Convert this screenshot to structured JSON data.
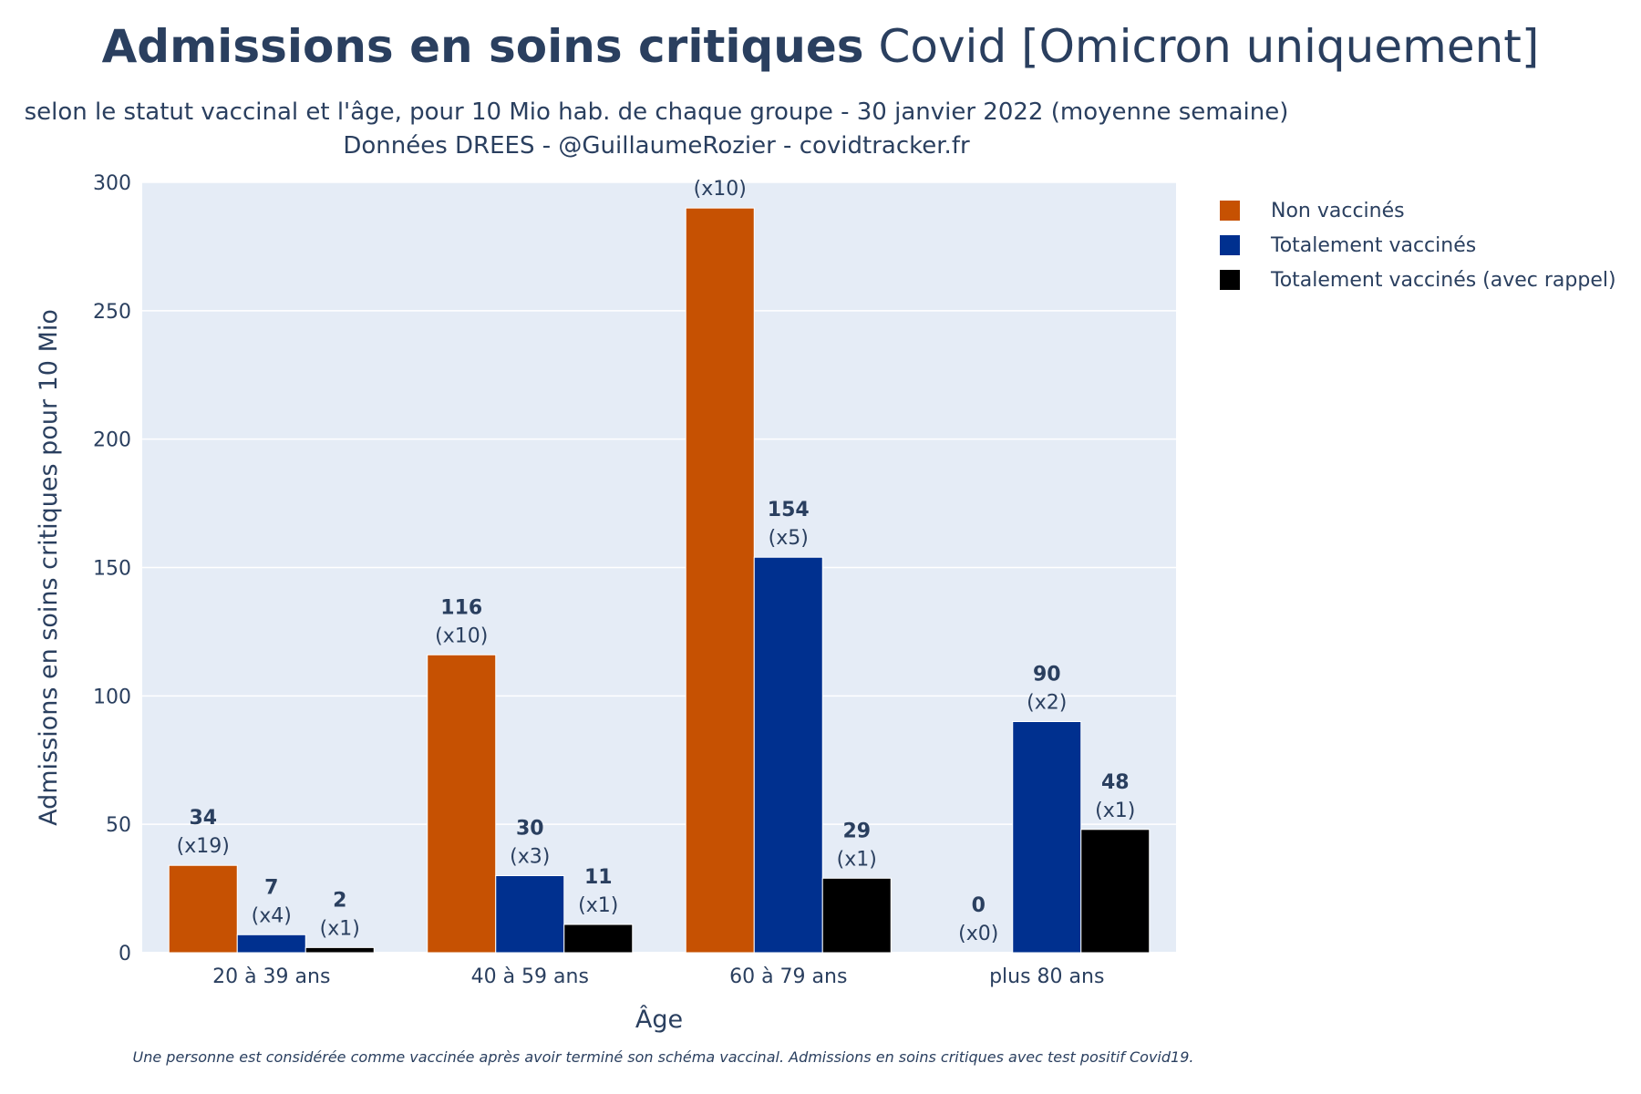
{
  "title_bold": "Admissions en soins critiques",
  "title_rest": " Covid [Omicron uniquement]",
  "subtitle_line1": "selon le statut vaccinal et l'âge, pour 10 Mio hab. de chaque groupe - 30 janvier 2022 (moyenne semaine)",
  "subtitle_line2": "Données DREES - @GuillaumeRozier - covidtracker.fr",
  "footnote": "Une personne est considérée comme vaccinée après avoir terminé son schéma vaccinal. Admissions en soins critiques avec test positif Covid19.",
  "chart_data": {
    "type": "bar",
    "xlabel": "Âge",
    "ylabel": "Admissions en soins critiques pour 10 Mio",
    "ylim": [
      0,
      300
    ],
    "yticks": [
      0,
      50,
      100,
      150,
      200,
      250,
      300
    ],
    "categories": [
      "20 à 39 ans",
      "40 à 59 ans",
      "60 à 79 ans",
      "plus 80 ans"
    ],
    "grid": true,
    "legend_position": "right",
    "series": [
      {
        "name": "Non vaccinés",
        "color": "#c65102",
        "values": [
          34,
          116,
          290,
          0
        ],
        "value_labels": [
          "34",
          "116",
          "",
          "0"
        ],
        "ratio_labels": [
          "(x19)",
          "(x10)",
          "(x10)",
          "(x0)"
        ]
      },
      {
        "name": "Totalement vaccinés",
        "color": "#00308f",
        "values": [
          7,
          30,
          154,
          90
        ],
        "value_labels": [
          "7",
          "30",
          "154",
          "90"
        ],
        "ratio_labels": [
          "(x4)",
          "(x3)",
          "(x5)",
          "(x2)"
        ]
      },
      {
        "name": "Totalement vaccinés (avec rappel)",
        "color": "#000000",
        "values": [
          2,
          11,
          29,
          48
        ],
        "value_labels": [
          "2",
          "11",
          "29",
          "48"
        ],
        "ratio_labels": [
          "(x1)",
          "(x1)",
          "(x1)",
          "(x1)"
        ]
      }
    ]
  }
}
